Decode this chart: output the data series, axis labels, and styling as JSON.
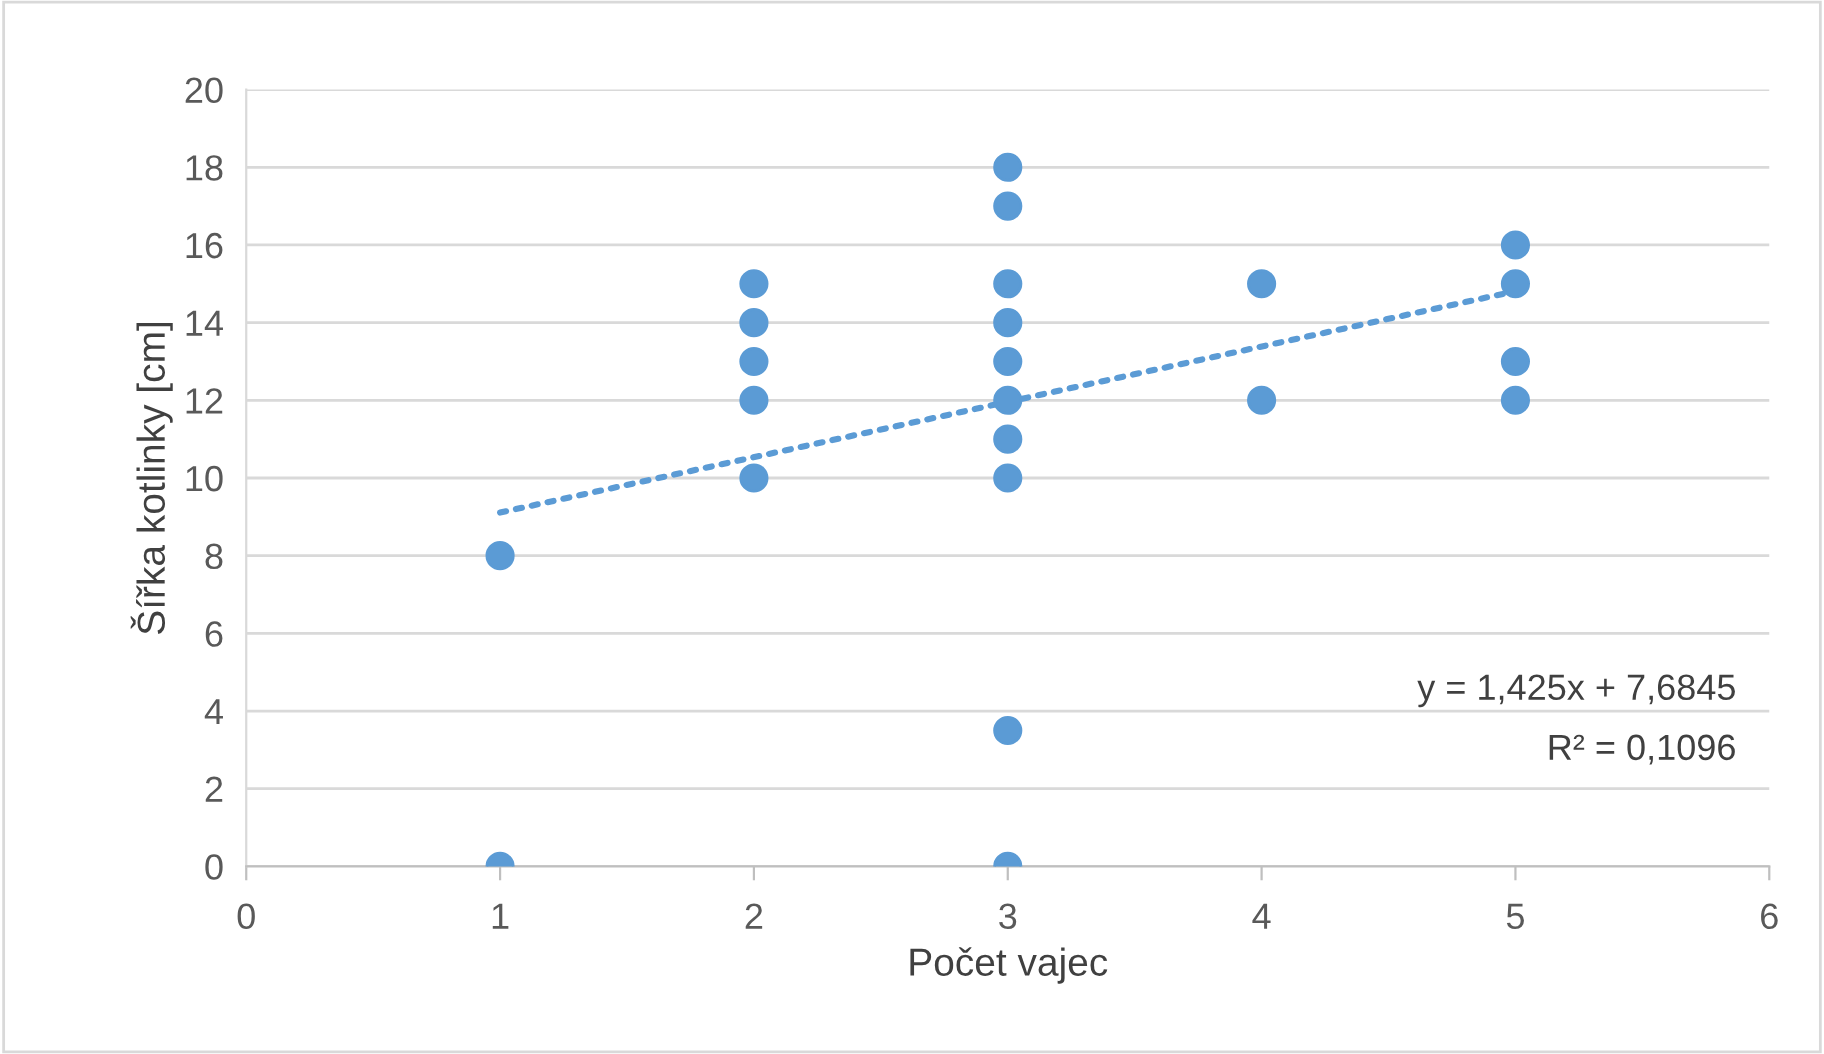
{
  "chart_data": {
    "type": "scatter",
    "xlabel": "Počet vajec",
    "ylabel": "Šířka kotlinky [cm]",
    "xlim": [
      0,
      6
    ],
    "xticks": [
      0,
      1,
      2,
      3,
      4,
      5,
      6
    ],
    "ylim": [
      0,
      20
    ],
    "yticks": [
      0,
      2,
      4,
      6,
      8,
      10,
      12,
      14,
      16,
      18,
      20
    ],
    "grid": "y",
    "legend": false,
    "series": [
      {
        "marker": "circle",
        "color": "#5b9bd5",
        "x": [
          1,
          1,
          2,
          2,
          2,
          2,
          2,
          3,
          3,
          3,
          3,
          3,
          3,
          3,
          3,
          3,
          3,
          4,
          4,
          5,
          5,
          5,
          5
        ],
        "values": [
          8,
          0,
          15,
          14,
          13,
          12,
          10,
          18,
          17,
          15,
          14,
          13,
          12,
          11,
          10,
          3.5,
          0,
          15,
          12,
          16,
          15,
          13,
          12
        ]
      },
      {
        "type": "line",
        "color": "#5b9bd5",
        "line_style": "dotted",
        "x": [
          1,
          5
        ],
        "values": [
          9.11,
          14.81
        ]
      }
    ],
    "annotations": [
      "y = 1,425x + 7,6845",
      "R² = 0,1096"
    ]
  }
}
